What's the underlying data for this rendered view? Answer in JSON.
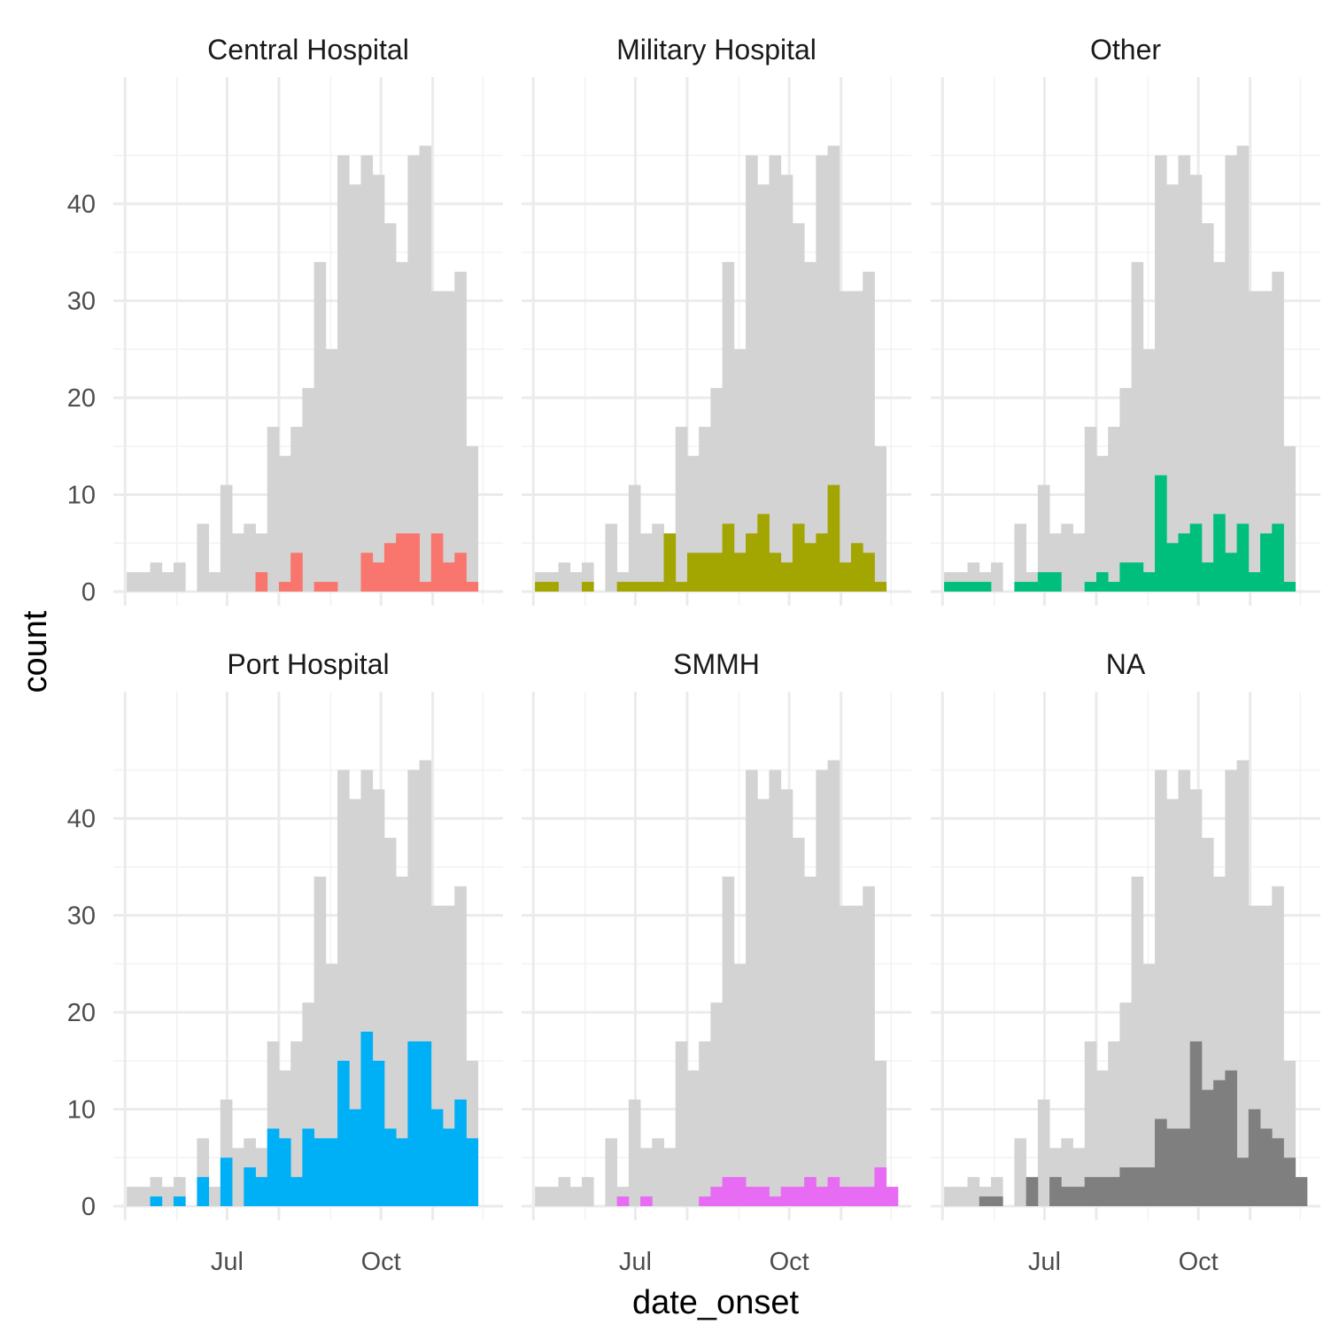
{
  "chart_data": {
    "type": "bar",
    "xlabel": "date_onset",
    "ylabel": "count",
    "x_ticks": [
      "Jul",
      "Oct"
    ],
    "y_ticks": [
      0,
      10,
      20,
      30,
      40
    ],
    "ylim": [
      0,
      46
    ],
    "bins": [
      "2014-05-02",
      "2014-05-09",
      "2014-05-16",
      "2014-05-23",
      "2014-05-30",
      "2014-06-06",
      "2014-06-13",
      "2014-06-20",
      "2014-06-27",
      "2014-07-04",
      "2014-07-11",
      "2014-07-18",
      "2014-07-25",
      "2014-08-01",
      "2014-08-08",
      "2014-08-15",
      "2014-08-22",
      "2014-08-29",
      "2014-09-05",
      "2014-09-12",
      "2014-09-19",
      "2014-09-26",
      "2014-10-03",
      "2014-10-10",
      "2014-10-17",
      "2014-10-24",
      "2014-10-31",
      "2014-11-07",
      "2014-11-14",
      "2014-11-21",
      "2014-11-28"
    ],
    "bin_width_days": 7,
    "total": {
      "name": "",
      "color": "#d3d3d3",
      "values": [
        2,
        2,
        3,
        2,
        3,
        0,
        7,
        2,
        11,
        6,
        7,
        6,
        17,
        14,
        17,
        21,
        34,
        25,
        45,
        42,
        45,
        43,
        38,
        34,
        45,
        46,
        31,
        31,
        33,
        15,
        0
      ]
    },
    "series": [
      {
        "name": "Central Hospital",
        "color": "#F8766D",
        "values": [
          0,
          0,
          0,
          0,
          0,
          0,
          0,
          0,
          0,
          0,
          0,
          2,
          0,
          1,
          4,
          0,
          1,
          1,
          0,
          0,
          4,
          3,
          5,
          6,
          6,
          1,
          6,
          3,
          4,
          1,
          0
        ]
      },
      {
        "name": "Military Hospital",
        "color": "#A3A500",
        "values": [
          1,
          1,
          0,
          0,
          1,
          0,
          0,
          1,
          1,
          1,
          1,
          6,
          1,
          4,
          4,
          4,
          7,
          4,
          6,
          8,
          4,
          3,
          7,
          5,
          6,
          11,
          3,
          5,
          4,
          1,
          0
        ]
      },
      {
        "name": "Other",
        "color": "#00BF7D",
        "values": [
          1,
          1,
          1,
          1,
          0,
          0,
          1,
          1,
          2,
          2,
          0,
          0,
          1,
          2,
          1,
          3,
          3,
          2,
          12,
          5,
          6,
          7,
          3,
          8,
          4,
          7,
          2,
          6,
          7,
          1,
          0
        ]
      },
      {
        "name": "Port Hospital",
        "color": "#00B0F6",
        "values": [
          0,
          0,
          1,
          0,
          1,
          0,
          3,
          0,
          5,
          0,
          4,
          3,
          8,
          7,
          3,
          8,
          7,
          7,
          15,
          10,
          18,
          15,
          8,
          7,
          17,
          17,
          10,
          8,
          11,
          7,
          0
        ]
      },
      {
        "name": "SMMH",
        "color": "#E76BF3",
        "values": [
          0,
          0,
          0,
          0,
          0,
          0,
          0,
          1,
          0,
          1,
          0,
          0,
          0,
          0,
          1,
          2,
          3,
          3,
          2,
          2,
          1,
          2,
          2,
          3,
          2,
          3,
          2,
          2,
          2,
          4,
          2
        ]
      },
      {
        "name": "NA",
        "color": "#7F7F7F",
        "values": [
          0,
          0,
          0,
          1,
          1,
          0,
          0,
          3,
          0,
          3,
          2,
          2,
          3,
          3,
          3,
          4,
          4,
          4,
          9,
          8,
          8,
          17,
          12,
          13,
          14,
          5,
          10,
          8,
          7,
          5,
          3
        ]
      }
    ]
  }
}
